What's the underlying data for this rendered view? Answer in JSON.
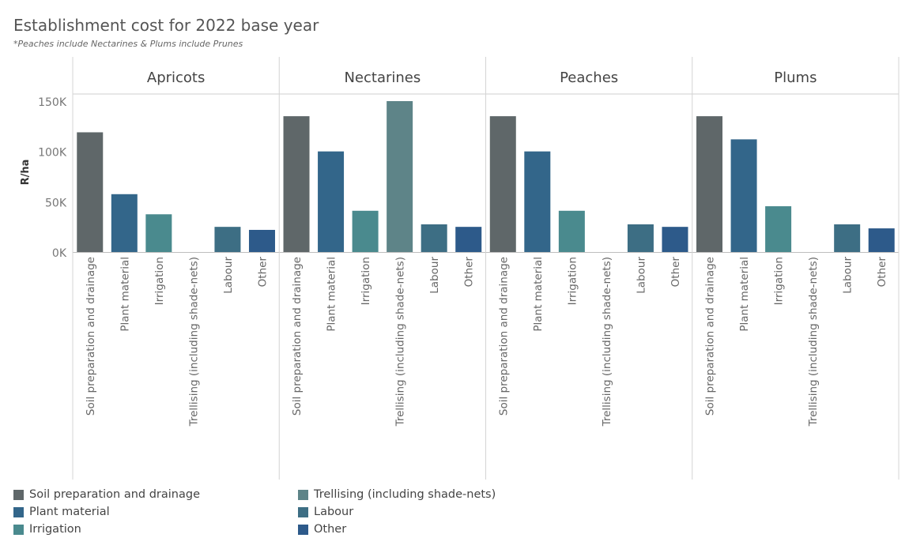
{
  "title": "Establishment cost for 2022 base year",
  "subtitle": "*Peaches include Nectarines & Plums include Prunes",
  "chart_data": {
    "type": "bar",
    "ylabel": "R/ha",
    "ylim": [
      0,
      150000
    ],
    "yticks": [
      0,
      50000,
      100000,
      150000
    ],
    "ytick_labels": [
      "0K",
      "50K",
      "100K",
      "150K"
    ],
    "categories": [
      "Soil preparation and drainage",
      "Plant material",
      "Irrigation",
      "Trellising (including shade-nets)",
      "Labour",
      "Other"
    ],
    "colors": [
      "#5f6769",
      "#33668a",
      "#4a8a8e",
      "#5e8488",
      "#3d6e84",
      "#2d5a8a"
    ],
    "panels": [
      {
        "name": "Apricots",
        "values": [
          119000,
          57500,
          37500,
          0,
          25000,
          22000
        ]
      },
      {
        "name": "Nectarines",
        "values": [
          135000,
          100000,
          41000,
          150000,
          27500,
          25000
        ]
      },
      {
        "name": "Peaches",
        "values": [
          135000,
          100000,
          41000,
          0,
          27500,
          25000
        ]
      },
      {
        "name": "Plums",
        "values": [
          135000,
          112000,
          45500,
          0,
          27500,
          23500
        ]
      }
    ]
  },
  "legend": {
    "items": [
      {
        "label": "Soil preparation and drainage",
        "color": "#5f6769"
      },
      {
        "label": "Plant material",
        "color": "#33668a"
      },
      {
        "label": "Irrigation",
        "color": "#4a8a8e"
      },
      {
        "label": "Trellising (including shade-nets)",
        "color": "#5e8488"
      },
      {
        "label": "Labour",
        "color": "#3d6e84"
      },
      {
        "label": "Other",
        "color": "#2d5a8a"
      }
    ]
  }
}
